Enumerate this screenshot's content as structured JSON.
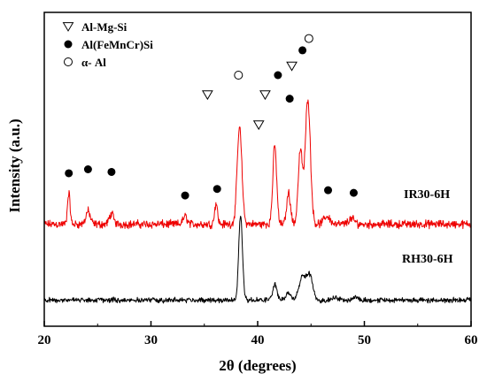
{
  "chart_data": {
    "type": "line",
    "xlabel": "2θ (degrees)",
    "ylabel": "Intensity (a.u.)",
    "xlim": [
      20,
      60
    ],
    "x_ticks": [
      "20",
      "30",
      "40",
      "50",
      "60"
    ],
    "y_ticks_labeled": false,
    "grid": false,
    "legend_placement": "top-left",
    "legend": [
      {
        "symbol": "triangle-down-open",
        "label": "Al-Mg-Si"
      },
      {
        "symbol": "circle-filled",
        "label": "Al(FeMnCr)Si"
      },
      {
        "symbol": "circle-open",
        "label": "α- Al"
      }
    ],
    "series": [
      {
        "name": "IR30-6H",
        "color": "#ee0000",
        "baseline": 0.39,
        "noise": 0.013,
        "peaks": [
          {
            "x": 22.3,
            "h": 0.12,
            "w": 0.12
          },
          {
            "x": 24.1,
            "h": 0.05,
            "w": 0.2
          },
          {
            "x": 26.3,
            "h": 0.04,
            "w": 0.2
          },
          {
            "x": 33.2,
            "h": 0.03,
            "w": 0.2
          },
          {
            "x": 36.1,
            "h": 0.08,
            "w": 0.14
          },
          {
            "x": 38.3,
            "h": 0.37,
            "w": 0.22
          },
          {
            "x": 41.6,
            "h": 0.3,
            "w": 0.18
          },
          {
            "x": 42.9,
            "h": 0.12,
            "w": 0.18
          },
          {
            "x": 44.0,
            "h": 0.28,
            "w": 0.2
          },
          {
            "x": 44.7,
            "h": 0.48,
            "w": 0.24
          },
          {
            "x": 46.5,
            "h": 0.03,
            "w": 0.3
          },
          {
            "x": 48.8,
            "h": 0.02,
            "w": 0.3
          }
        ]
      },
      {
        "name": "RH30-6H",
        "color": "#000000",
        "baseline": 0.1,
        "noise": 0.008,
        "peaks": [
          {
            "x": 38.4,
            "h": 0.33,
            "w": 0.17
          },
          {
            "x": 41.6,
            "h": 0.06,
            "w": 0.2
          },
          {
            "x": 42.9,
            "h": 0.03,
            "w": 0.2
          },
          {
            "x": 44.2,
            "h": 0.09,
            "w": 0.32
          },
          {
            "x": 44.9,
            "h": 0.09,
            "w": 0.28
          },
          {
            "x": 47.3,
            "h": 0.01,
            "w": 0.3
          },
          {
            "x": 49.2,
            "h": 0.01,
            "w": 0.3
          }
        ]
      }
    ],
    "phase_markers": [
      {
        "x": 22.3,
        "y": 0.585,
        "symbol": "circle-filled"
      },
      {
        "x": 24.1,
        "y": 0.6,
        "symbol": "circle-filled"
      },
      {
        "x": 26.3,
        "y": 0.59,
        "symbol": "circle-filled"
      },
      {
        "x": 33.2,
        "y": 0.5,
        "symbol": "circle-filled"
      },
      {
        "x": 36.2,
        "y": 0.525,
        "symbol": "circle-filled"
      },
      {
        "x": 35.3,
        "y": 0.885,
        "symbol": "triangle-down-open"
      },
      {
        "x": 38.2,
        "y": 0.96,
        "symbol": "circle-open"
      },
      {
        "x": 40.1,
        "y": 0.77,
        "symbol": "triangle-down-open"
      },
      {
        "x": 40.7,
        "y": 0.885,
        "symbol": "triangle-down-open"
      },
      {
        "x": 41.9,
        "y": 0.96,
        "symbol": "circle-filled"
      },
      {
        "x": 43.0,
        "y": 0.87,
        "symbol": "circle-filled"
      },
      {
        "x": 43.2,
        "y": 0.995,
        "symbol": "triangle-down-open"
      },
      {
        "x": 44.2,
        "y": 1.055,
        "symbol": "circle-filled"
      },
      {
        "x": 44.8,
        "y": 1.1,
        "symbol": "circle-open"
      },
      {
        "x": 46.6,
        "y": 0.52,
        "symbol": "circle-filled"
      },
      {
        "x": 49.0,
        "y": 0.51,
        "symbol": "circle-filled"
      }
    ]
  }
}
